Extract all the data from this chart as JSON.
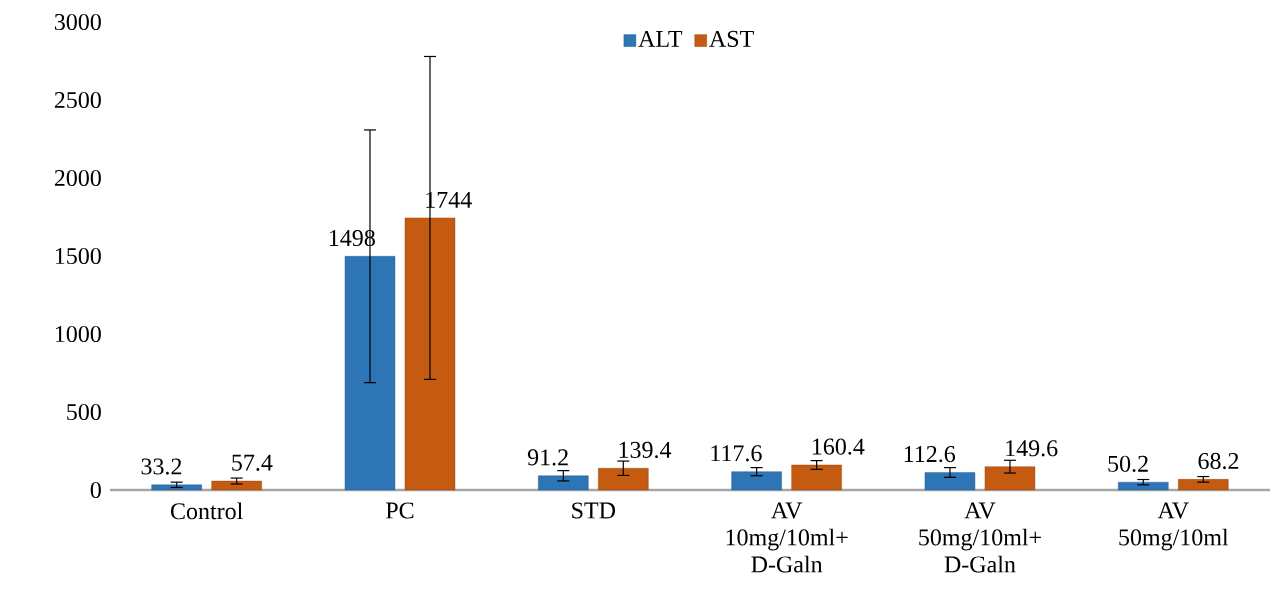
{
  "chart_data": {
    "type": "bar",
    "categories": [
      "Control",
      "PC",
      "STD",
      "AV 10mg/10ml+ D-Galn",
      "AV 50mg/10ml+ D-Galn",
      "AV 50mg/10ml"
    ],
    "series": [
      {
        "name": "ALT",
        "color": "#2e75b6",
        "values": [
          33.2,
          1498,
          91.2,
          117.6,
          112.6,
          50.2
        ],
        "errors": [
          17,
          810,
          33,
          26,
          31,
          17
        ]
      },
      {
        "name": "AST",
        "color": "#c55a11",
        "values": [
          57.4,
          1744,
          139.4,
          160.4,
          149.6,
          68.2
        ],
        "errors": [
          19,
          1035,
          46,
          28,
          41,
          18
        ]
      }
    ],
    "ylim": [
      0,
      3000
    ],
    "yticks": [
      0,
      500,
      1000,
      1500,
      2000,
      2500,
      3000
    ],
    "data_labels": true,
    "grid": false,
    "legend": "top"
  }
}
